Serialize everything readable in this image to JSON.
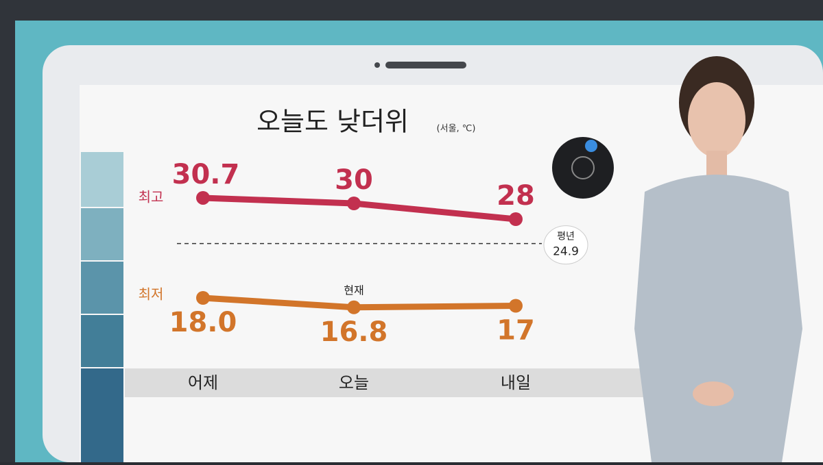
{
  "chart_data": {
    "type": "line",
    "title": "오늘도 낮더위",
    "subtitle": "(서울, ℃)",
    "categories": [
      "어제",
      "오늘",
      "내일"
    ],
    "series": [
      {
        "name": "최고",
        "color": "#c2304f",
        "values": [
          30.7,
          30,
          28
        ]
      },
      {
        "name": "최저",
        "color": "#d2752a",
        "values": [
          18.0,
          16.8,
          17
        ],
        "value_labels": [
          "18.0",
          "16.8",
          "17"
        ]
      }
    ],
    "annotation": "현재",
    "reference": {
      "label": "평년",
      "value": 24.9
    },
    "ylim": [
      14,
      34
    ]
  }
}
